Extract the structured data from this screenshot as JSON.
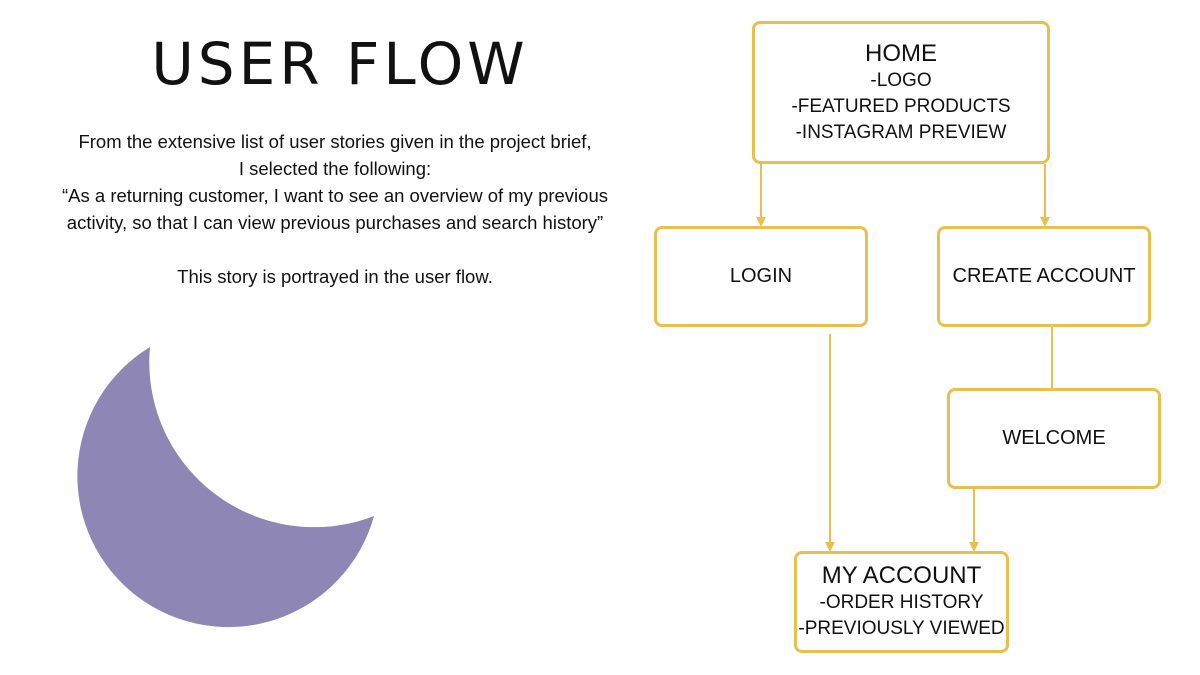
{
  "colors": {
    "accent": "#e8c04f",
    "moon": "#8e86b4",
    "text": "#111111",
    "background": "#ffffff"
  },
  "title": "USER FLOW",
  "intro": {
    "line1": "From the extensive list of user stories given in the project brief,",
    "line2": "I selected the following:",
    "line3": "“As a returning customer, I want to see an overview of my previous",
    "line4": "activity, so that I can view previous purchases and search history”",
    "line5": "This story is portrayed in the user flow."
  },
  "decoration": {
    "icon": "crescent-moon-icon"
  },
  "flow": {
    "home": {
      "title": "HOME",
      "items": [
        "-LOGO",
        "-FEATURED PRODUCTS",
        "-INSTAGRAM PREVIEW"
      ]
    },
    "login": {
      "title": "LOGIN"
    },
    "create_account": {
      "title": "CREATE ACCOUNT"
    },
    "welcome": {
      "title": "WELCOME"
    },
    "my_account": {
      "title": "MY ACCOUNT",
      "items": [
        "-ORDER HISTORY",
        "-PREVIOUSLY VIEWED"
      ]
    }
  }
}
